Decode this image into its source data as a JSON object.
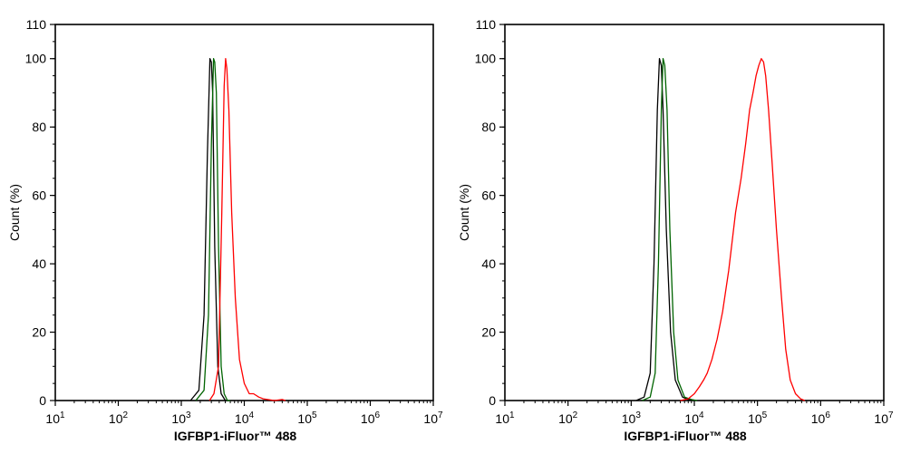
{
  "chart_data": [
    {
      "type": "line",
      "xscale": "log",
      "xlim": [
        10,
        10000000
      ],
      "ylim": [
        0,
        110
      ],
      "xticks": [
        "10^1",
        "10^2",
        "10^3",
        "10^4",
        "10^5",
        "10^6",
        "10^7"
      ],
      "yticks": [
        0,
        20,
        40,
        60,
        80,
        100
      ],
      "y_minor_step": 5,
      "xlabel": "IGFBP1-iFluor™ 488",
      "ylabel": "Count  (%)",
      "series": [
        {
          "color": "#000000",
          "x": [
            1400,
            1900,
            2300,
            2600,
            2850,
            3000,
            3150,
            3400,
            3800,
            4300,
            5000,
            5600
          ],
          "y": [
            0,
            3,
            25,
            72,
            100,
            99,
            90,
            45,
            10,
            2,
            0,
            0
          ]
        },
        {
          "color": "#006400",
          "x": [
            1700,
            2300,
            2700,
            3000,
            3250,
            3400,
            3600,
            3900,
            4300,
            4800,
            5400,
            6000
          ],
          "y": [
            0,
            3,
            25,
            75,
            100,
            99,
            90,
            45,
            10,
            2,
            0,
            0
          ]
        },
        {
          "color": "#ff0000",
          "x": [
            2800,
            3300,
            3900,
            4400,
            4800,
            5050,
            5300,
            5700,
            6300,
            7200,
            8400,
            10000,
            12000,
            14000,
            17000,
            20000,
            30000,
            40000,
            45000
          ],
          "y": [
            0,
            2,
            10,
            55,
            92,
            100,
            97,
            85,
            55,
            30,
            12,
            5,
            2,
            2,
            1,
            0.5,
            0,
            0.3,
            0
          ]
        }
      ]
    },
    {
      "type": "line",
      "xscale": "log",
      "xlim": [
        10,
        10000000
      ],
      "ylim": [
        0,
        110
      ],
      "xticks": [
        "10^1",
        "10^2",
        "10^3",
        "10^4",
        "10^5",
        "10^6",
        "10^7"
      ],
      "yticks": [
        0,
        20,
        40,
        60,
        80,
        100
      ],
      "y_minor_step": 5,
      "xlabel": "IGFBP1-iFluor™ 488",
      "ylabel": "Count  (%)",
      "series": [
        {
          "color": "#000000",
          "x": [
            1200,
            1600,
            2000,
            2300,
            2600,
            2800,
            3000,
            3200,
            3600,
            4200,
            5000,
            6500,
            8000,
            10000
          ],
          "y": [
            0,
            1,
            8,
            40,
            85,
            100,
            98,
            85,
            50,
            20,
            6,
            1,
            0.3,
            0
          ]
        },
        {
          "color": "#006400",
          "x": [
            1500,
            2000,
            2400,
            2700,
            3000,
            3200,
            3400,
            3700,
            4100,
            4700,
            5500,
            7000,
            9000,
            11000
          ],
          "y": [
            0,
            1,
            8,
            40,
            85,
            100,
            98,
            85,
            50,
            20,
            6,
            1,
            0.3,
            0
          ]
        },
        {
          "color": "#ff0000",
          "x": [
            6000,
            8000,
            10000,
            12000,
            14000,
            16000,
            19000,
            23000,
            28000,
            35000,
            45000,
            55000,
            65000,
            75000,
            85000,
            95000,
            105000,
            115000,
            125000,
            135000,
            150000,
            170000,
            200000,
            240000,
            280000,
            330000,
            400000,
            480000,
            560000
          ],
          "y": [
            0,
            0.5,
            2,
            4,
            6,
            8,
            12,
            18,
            26,
            38,
            55,
            65,
            75,
            85,
            90,
            95,
            98,
            100,
            99,
            95,
            85,
            70,
            50,
            30,
            15,
            6,
            2,
            0.5,
            0
          ]
        }
      ]
    }
  ]
}
